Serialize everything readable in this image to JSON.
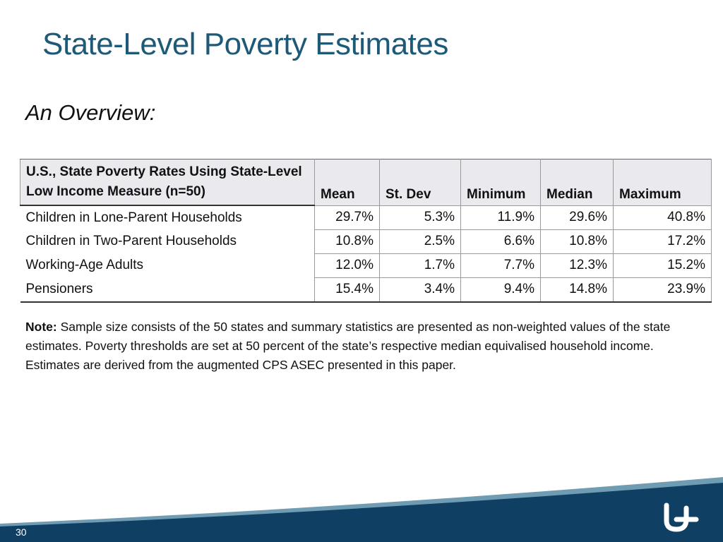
{
  "title": "State-Level Poverty Estimates",
  "subtitle": "An Overview:",
  "table": {
    "header": [
      "U.S., State Poverty Rates Using State-Level Low Income Measure (n=50)",
      "Mean",
      "St. Dev",
      "Minimum",
      "Median",
      "Maximum"
    ],
    "rows": [
      [
        "Children in Lone-Parent Households",
        "29.7%",
        "5.3%",
        "11.9%",
        "29.6%",
        "40.8%"
      ],
      [
        "Children in Two-Parent Households",
        "10.8%",
        "2.5%",
        "6.6%",
        "10.8%",
        "17.2%"
      ],
      [
        "Working-Age Adults",
        "12.0%",
        "1.7%",
        "7.7%",
        "12.3%",
        "15.2%"
      ],
      [
        "Pensioners",
        "15.4%",
        "3.4%",
        "9.4%",
        "14.8%",
        "23.9%"
      ]
    ]
  },
  "note": {
    "label": "Note:",
    "text": " Sample size consists of the 50 states and summary statistics are presented as non-weighted values of the state estimates. Poverty thresholds are set at 50 percent of the state’s respective median equivalised household income. Estimates are derived from the augmented CPS ASEC presented in this paper."
  },
  "page_number": "30"
}
